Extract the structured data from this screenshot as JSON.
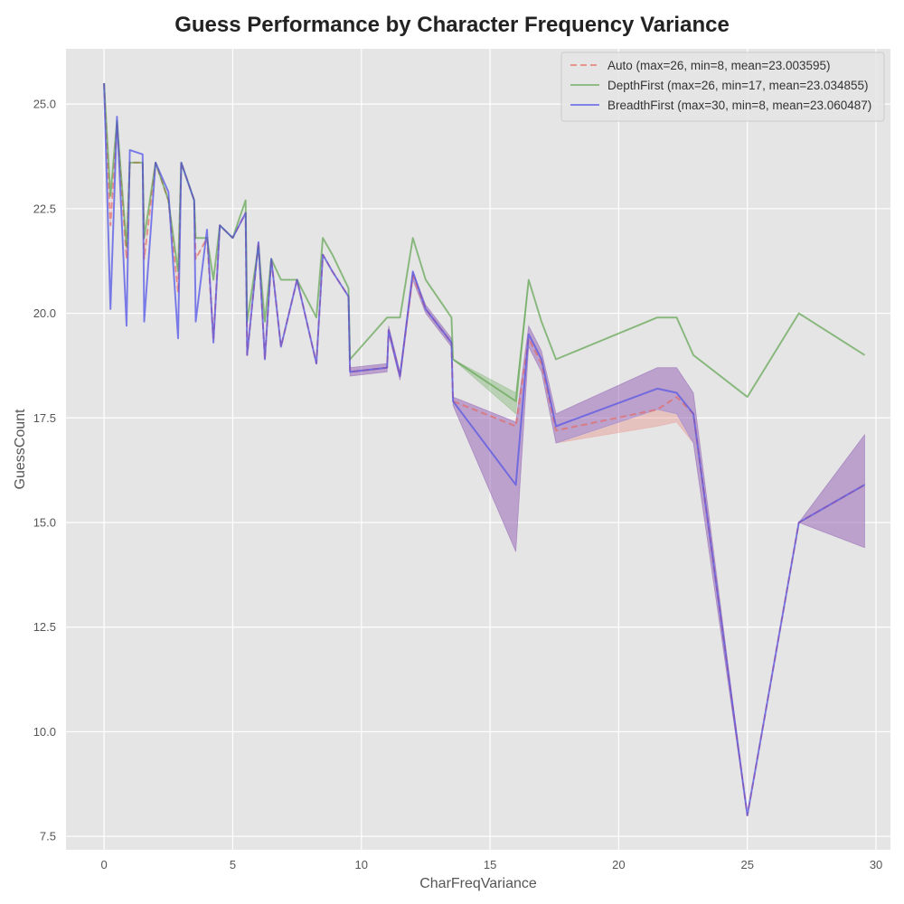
{
  "chart_data": {
    "type": "line",
    "title": "Guess Performance by Character Frequency Variance",
    "xlabel": "CharFreqVariance",
    "ylabel": "GuessCount",
    "xlim": [
      -1.48,
      30.56
    ],
    "ylim": [
      7.18,
      26.32
    ],
    "xticks": [
      0,
      5,
      10,
      15,
      20,
      25,
      30
    ],
    "xtick_labels": [
      "0",
      "5",
      "10",
      "15",
      "20",
      "25",
      "30"
    ],
    "yticks": [
      7.5,
      10.0,
      12.5,
      15.0,
      17.5,
      20.0,
      22.5,
      25.0
    ],
    "ytick_labels": [
      "7.5",
      "10.0",
      "12.5",
      "15.0",
      "17.5",
      "20.0",
      "22.5",
      "25.0"
    ],
    "grid": true,
    "legend_position": "top-right",
    "style": {
      "background": "#e5e5e5",
      "grid_color": "#ffffff",
      "text_color": "#555555",
      "title_color": "#222222"
    },
    "series": [
      {
        "name": "Auto (max=26, min=8, mean=23.003595)",
        "color": "#e8675f",
        "dash": "dashed",
        "opacity": 0.65,
        "x": [
          0,
          0.25,
          0.5,
          0.875,
          1,
          1.5,
          1.56,
          2,
          2.5,
          2.875,
          3,
          3.5,
          3.56,
          4,
          4.25,
          4.5,
          5,
          5.5,
          5.56,
          6,
          6.25,
          6.5,
          6.875,
          7.5,
          8.25,
          8.5,
          8.875,
          9.5,
          9.56,
          11,
          11.06,
          11.5,
          12,
          12.5,
          13.5,
          13.56,
          16,
          16.5,
          17,
          17.56,
          21.5,
          22.25,
          22.9,
          25,
          27,
          29.56
        ],
        "y": [
          25.5,
          22.1,
          24.5,
          21.3,
          23.6,
          23.6,
          21.3,
          23.6,
          22.7,
          20.5,
          23.6,
          22.7,
          21.3,
          21.8,
          19.4,
          22.1,
          21.8,
          22.4,
          19.0,
          21.7,
          18.9,
          21.3,
          19.2,
          20.8,
          18.8,
          21.4,
          21.0,
          20.4,
          18.6,
          18.7,
          19.6,
          18.5,
          20.9,
          20.1,
          19.3,
          17.9,
          17.3,
          19.4,
          18.8,
          17.2,
          17.7,
          18.0,
          17.6,
          8.0,
          15.0,
          15.9
        ],
        "band_lower": [
          25.5,
          22.1,
          24.5,
          21.3,
          23.6,
          23.6,
          21.3,
          23.6,
          22.7,
          20.5,
          23.6,
          22.7,
          21.3,
          21.8,
          19.4,
          22.1,
          21.8,
          22.4,
          19.0,
          21.7,
          18.9,
          21.3,
          19.2,
          20.8,
          18.8,
          21.4,
          21.0,
          20.4,
          18.5,
          18.6,
          19.5,
          18.4,
          20.8,
          20.0,
          19.2,
          17.8,
          14.3,
          19.2,
          18.6,
          16.9,
          17.3,
          17.4,
          16.9,
          8.0,
          15.0,
          14.4
        ],
        "band_upper": [
          25.5,
          22.1,
          24.5,
          21.3,
          23.6,
          23.6,
          21.3,
          23.6,
          22.7,
          20.5,
          23.6,
          22.7,
          21.3,
          21.8,
          19.4,
          22.1,
          21.8,
          22.4,
          19.0,
          21.7,
          18.9,
          21.3,
          19.2,
          20.8,
          18.8,
          21.4,
          21.0,
          20.4,
          18.7,
          18.8,
          19.7,
          18.6,
          21.0,
          20.2,
          19.4,
          18.0,
          17.4,
          19.7,
          19.1,
          17.6,
          18.7,
          18.7,
          18.1,
          8.0,
          15.0,
          17.1
        ]
      },
      {
        "name": "DepthFirst (max=26, min=17, mean=23.034855)",
        "color": "#4c9a3a",
        "dash": "solid",
        "opacity": 0.55,
        "x": [
          0,
          0.25,
          0.5,
          0.875,
          1,
          1.5,
          1.56,
          2,
          2.5,
          2.875,
          3,
          3.5,
          3.56,
          4,
          4.25,
          4.5,
          5,
          5.5,
          5.56,
          6,
          6.25,
          6.5,
          6.875,
          7.5,
          8.25,
          8.5,
          8.875,
          9.5,
          9.56,
          11,
          11.06,
          11.5,
          12,
          12.5,
          13.5,
          13.56,
          16,
          16.5,
          17,
          17.56,
          21.5,
          22.25,
          22.9,
          25,
          27,
          29.56
        ],
        "y": [
          25.5,
          22.8,
          24.6,
          21.6,
          23.6,
          23.6,
          21.8,
          23.6,
          22.7,
          21.0,
          23.6,
          22.7,
          21.8,
          21.8,
          20.8,
          22.1,
          21.8,
          22.7,
          19.8,
          21.6,
          19.8,
          21.3,
          20.8,
          20.8,
          19.9,
          21.8,
          21.4,
          20.6,
          18.9,
          19.9,
          19.9,
          19.9,
          21.8,
          20.8,
          19.9,
          18.9,
          17.9,
          20.8,
          19.8,
          18.9,
          19.9,
          19.9,
          19.0,
          18.0,
          20.0,
          19.0
        ],
        "band_lower": [
          25.5,
          22.8,
          24.6,
          21.6,
          23.6,
          23.6,
          21.8,
          23.6,
          22.7,
          21.0,
          23.6,
          22.7,
          21.8,
          21.8,
          20.8,
          22.1,
          21.8,
          22.7,
          19.8,
          21.6,
          19.8,
          21.3,
          20.8,
          20.8,
          19.9,
          21.8,
          21.4,
          20.6,
          18.9,
          19.9,
          19.9,
          19.9,
          21.8,
          20.8,
          19.9,
          18.9,
          17.6,
          20.8,
          19.8,
          18.9,
          19.9,
          19.9,
          19.0,
          18.0,
          20.0,
          19.0
        ],
        "band_upper": [
          25.5,
          22.8,
          24.6,
          21.6,
          23.6,
          23.6,
          21.8,
          23.6,
          22.7,
          21.0,
          23.6,
          22.7,
          21.8,
          21.8,
          20.8,
          22.1,
          21.8,
          22.7,
          19.8,
          21.6,
          19.8,
          21.3,
          20.8,
          20.8,
          19.9,
          21.8,
          21.4,
          20.6,
          18.9,
          19.9,
          19.9,
          19.9,
          21.8,
          20.8,
          19.9,
          18.9,
          18.1,
          20.8,
          19.8,
          18.9,
          19.9,
          19.9,
          19.0,
          18.0,
          20.0,
          19.0
        ]
      },
      {
        "name": "BreadthFirst (max=30, min=8, mean=23.060487)",
        "color": "#4b4de8",
        "dash": "solid",
        "opacity": 0.65,
        "x": [
          0,
          0.25,
          0.5,
          0.875,
          1,
          1.5,
          1.56,
          2,
          2.5,
          2.875,
          3,
          3.5,
          3.56,
          4,
          4.25,
          4.5,
          5,
          5.5,
          5.56,
          6,
          6.25,
          6.5,
          6.875,
          7.5,
          8.25,
          8.5,
          8.875,
          9.5,
          9.56,
          11,
          11.06,
          11.5,
          12,
          12.5,
          13.5,
          13.56,
          16,
          16.5,
          17,
          17.56,
          21.5,
          22.25,
          22.9,
          25,
          27,
          29.56
        ],
        "y": [
          25.5,
          20.1,
          24.7,
          19.7,
          23.9,
          23.8,
          19.8,
          23.6,
          22.9,
          19.4,
          23.6,
          22.7,
          19.8,
          22.0,
          19.3,
          22.1,
          21.8,
          22.4,
          19.0,
          21.7,
          18.9,
          21.3,
          19.2,
          20.8,
          18.8,
          21.4,
          21.0,
          20.4,
          18.6,
          18.7,
          19.6,
          18.5,
          21.0,
          20.1,
          19.3,
          17.9,
          15.9,
          19.5,
          18.9,
          17.3,
          18.2,
          18.1,
          17.6,
          8.0,
          15.0,
          15.9
        ],
        "band_lower": [
          25.5,
          20.1,
          24.7,
          19.7,
          23.9,
          23.8,
          19.8,
          23.6,
          22.9,
          19.4,
          23.6,
          22.7,
          19.8,
          22.0,
          19.3,
          22.1,
          21.8,
          22.4,
          19.0,
          21.7,
          18.9,
          21.3,
          19.2,
          20.8,
          18.8,
          21.4,
          21.0,
          20.4,
          18.5,
          18.6,
          19.5,
          18.4,
          20.8,
          20.0,
          19.2,
          17.8,
          14.3,
          19.2,
          18.6,
          16.9,
          17.7,
          17.6,
          16.9,
          8.0,
          15.0,
          14.4
        ],
        "band_upper": [
          25.5,
          20.1,
          24.7,
          19.7,
          23.9,
          23.8,
          19.8,
          23.6,
          22.9,
          19.4,
          23.6,
          22.7,
          19.8,
          22.0,
          19.3,
          22.1,
          21.8,
          22.4,
          19.0,
          21.7,
          18.9,
          21.3,
          19.2,
          20.8,
          18.8,
          21.4,
          21.0,
          20.4,
          18.7,
          18.8,
          19.7,
          18.6,
          21.0,
          20.2,
          19.4,
          18.0,
          17.4,
          19.7,
          19.1,
          17.6,
          18.7,
          18.7,
          18.1,
          8.0,
          15.0,
          17.1
        ]
      }
    ]
  }
}
